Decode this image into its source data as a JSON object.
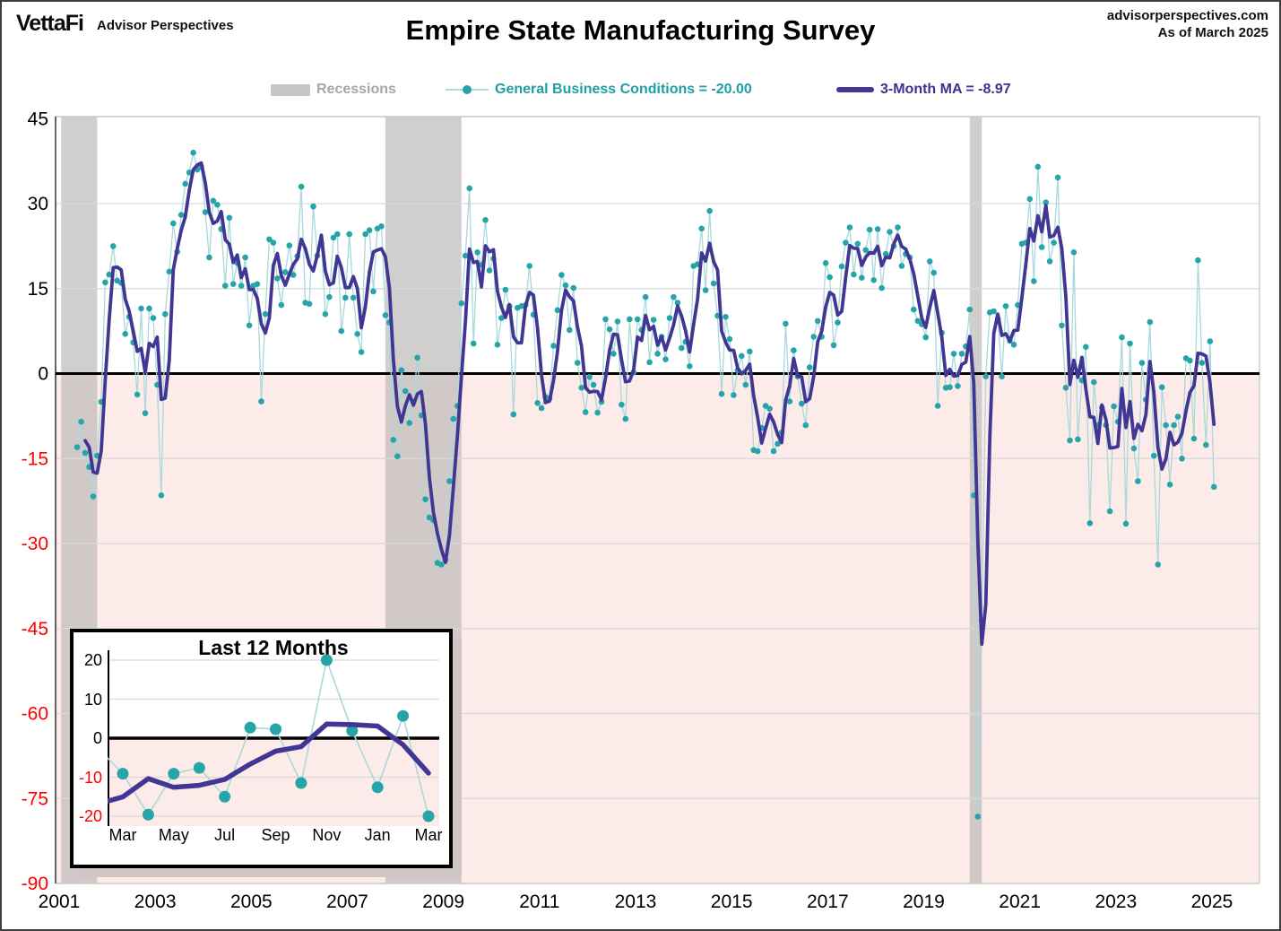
{
  "header": {
    "logo_primary": "VettaFi",
    "logo_secondary": "Advisor Perspectives",
    "title": "Empire State Manufacturing Survey",
    "source_line1": "advisorperspectives.com",
    "source_line2": "As of March 2025"
  },
  "legend": {
    "recessions_label": "Recessions",
    "gbc_label": "General Business Conditions = -20.00",
    "ma_label": "3-Month MA = -8.97"
  },
  "colors": {
    "teal_dot": "#25a4a9",
    "teal_line": "#a9d9db",
    "ma_purple": "#413693",
    "below_zero_pink": "#fcebe9",
    "recession_gray": "#bfbbbb",
    "grid_gray": "#d9d9d9",
    "zero_line": "#000000",
    "neg_label_red": "#ff0000",
    "axis_dark": "#404040",
    "frame_light": "#c9c9c9"
  },
  "chart_data": {
    "type": "line",
    "title": "Empire State Manufacturing Survey",
    "start_month": "2001-07",
    "end_month": "2025-03",
    "latest_value": -20.0,
    "latest_ma3": -8.97,
    "ma_window": 3,
    "ylim": [
      -90,
      45
    ],
    "yticks": [
      45,
      30,
      15,
      0,
      -15,
      -30,
      -45,
      -60,
      -75,
      -90
    ],
    "xticks": [
      2001,
      2003,
      2005,
      2007,
      2009,
      2011,
      2013,
      2015,
      2017,
      2019,
      2021,
      2023,
      2025
    ],
    "grid": "horizontal-only",
    "legend_position": "top-center",
    "recessions": [
      [
        "2001-03",
        "2001-11"
      ],
      [
        "2007-12",
        "2009-06"
      ],
      [
        "2020-02",
        "2020-04"
      ]
    ],
    "series": [
      {
        "name": "General Business Conditions",
        "frequency": "monthly",
        "values": [
          -13.0,
          -8.5,
          -14.0,
          -16.5,
          -21.7,
          -14.5,
          -5.0,
          16.1,
          17.5,
          22.5,
          16.4,
          16.0,
          7.0,
          10.0,
          5.5,
          -3.7,
          11.5,
          -7.0,
          11.5,
          9.8,
          -2.0,
          -21.5,
          10.5,
          18.0,
          26.5,
          21.5,
          28.0,
          33.5,
          35.5,
          39.0,
          36.0,
          36.5,
          28.5,
          20.5,
          30.5,
          29.8,
          25.5,
          15.5,
          27.5,
          15.8,
          19.5,
          15.5,
          20.5,
          8.5,
          15.5,
          15.8,
          -4.9,
          10.5,
          23.7,
          23.1,
          16.8,
          12.1,
          17.9,
          22.6,
          17.4,
          20.7,
          33.0,
          12.5,
          12.3,
          29.5,
          20.8,
          23.0,
          10.5,
          13.5,
          24.0,
          24.6,
          7.5,
          13.4,
          24.6,
          13.4,
          7.0,
          3.8,
          24.6,
          25.3,
          14.5,
          25.6,
          26.0,
          10.3,
          9.0,
          -11.7,
          -14.6,
          0.6,
          -3.1,
          -8.7,
          -4.9,
          2.8,
          -7.4,
          -22.2,
          -25.4,
          -25.9,
          -33.4,
          -33.7,
          -32.9,
          -19.0,
          -8.0,
          -5.7,
          12.4,
          20.8,
          32.7,
          5.3,
          21.4,
          19.2,
          27.1,
          18.2,
          20.3,
          5.1,
          9.8,
          14.8,
          11.9,
          -7.2,
          11.6,
          11.9,
          12.1,
          19.0,
          10.4,
          -5.2,
          -6.1,
          -4.1,
          -4.4,
          4.9,
          11.2,
          17.4,
          15.6,
          7.7,
          15.1,
          1.9,
          -2.5,
          -6.8,
          -0.6,
          -2.0,
          -6.9,
          -5.0,
          9.6,
          7.8,
          3.5,
          9.2,
          -5.5,
          -8.0,
          9.6,
          0.2,
          9.6,
          7.7,
          13.5,
          2.0,
          9.5,
          3.5,
          6.5,
          2.5,
          9.8,
          13.5,
          12.5,
          4.5,
          5.6,
          1.3,
          19.0,
          19.3,
          25.6,
          14.7,
          28.7,
          15.9,
          10.2,
          -3.6,
          10.0,
          6.1,
          -3.8,
          0.6,
          3.1,
          -2.0,
          3.9,
          -13.5,
          -13.7,
          -9.6,
          -5.7,
          -6.2,
          -13.7,
          -12.4,
          -10.4,
          8.8,
          -4.9,
          4.1,
          -0.5,
          -5.3,
          -9.1,
          1.1,
          6.5,
          9.3,
          6.5,
          19.5,
          17.0,
          5.0,
          9.0,
          18.9,
          23.1,
          25.8,
          17.5,
          22.9,
          16.9,
          21.8,
          25.4,
          16.5,
          25.5,
          15.1,
          21.1,
          25.0,
          22.5,
          25.8,
          19.0,
          21.1,
          20.5,
          11.3,
          9.3,
          8.7,
          6.4,
          19.8,
          17.8,
          -5.7,
          7.2,
          -2.5,
          -2.4,
          3.5,
          -2.2,
          3.5,
          4.8,
          11.3,
          -21.5,
          -78.2,
          -43.6,
          -0.5,
          10.8,
          11.0,
          9.7,
          -0.5,
          11.9,
          5.8,
          5.1,
          12.1,
          22.9,
          23.1,
          30.8,
          16.3,
          36.5,
          22.3,
          30.2,
          19.8,
          23.1,
          34.6,
          8.5,
          -2.5,
          -11.8,
          21.4,
          -11.6,
          -1.2,
          4.7,
          -26.4,
          -1.5,
          -9.1,
          -6.0,
          -9.1,
          -24.3,
          -5.8,
          -8.5,
          6.4,
          -26.5,
          5.3,
          -13.2,
          -19.0,
          1.9,
          -4.6,
          9.1,
          -14.5,
          -33.7,
          -2.4,
          -9.1,
          -19.6,
          -9.1,
          -7.6,
          -15.0,
          2.7,
          2.3,
          -11.5,
          20.0,
          1.9,
          -12.6,
          5.7,
          -20.0
        ]
      },
      {
        "name": "3-Month MA",
        "derived": "3-month moving average of General Business Conditions",
        "latest": -8.97
      }
    ],
    "inset": {
      "title": "Last 12 Months",
      "window_months": 13,
      "xticks": [
        "Mar",
        "May",
        "Jul",
        "Sep",
        "Nov",
        "Jan",
        "Mar"
      ],
      "yticks": [
        20,
        10,
        0,
        -10,
        -20
      ],
      "values_last_13": [
        -9.1,
        -19.6,
        -9.1,
        -7.6,
        -15.0,
        2.7,
        2.3,
        -11.5,
        20.0,
        1.9,
        -12.6,
        5.7,
        -20.0
      ]
    }
  }
}
